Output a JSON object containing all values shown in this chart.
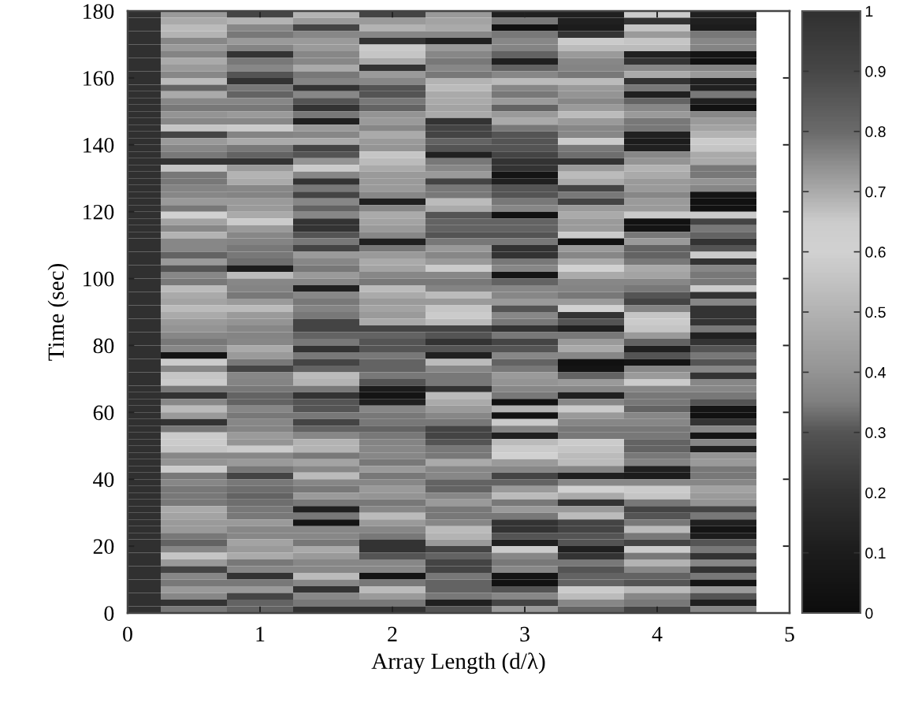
{
  "chart_data": {
    "type": "heatmap",
    "xlabel": "Array Length (d/λ)",
    "ylabel": "Time (sec)",
    "x": [
      0,
      0.5,
      1,
      1.5,
      2,
      2.5,
      3,
      3.5,
      4,
      4.5
    ],
    "xlim": [
      0,
      5
    ],
    "xticks": [
      0,
      1,
      2,
      3,
      4,
      5
    ],
    "ylim": [
      0,
      180
    ],
    "yticks": [
      0,
      20,
      40,
      60,
      80,
      100,
      120,
      140,
      160,
      180
    ],
    "clim": [
      0,
      1
    ],
    "cticks": [
      0,
      0.1,
      0.2,
      0.3,
      0.4,
      0.5,
      0.6,
      0.7,
      0.8,
      0.9,
      1
    ],
    "cells": [
      [
        1,
        0.42,
        0.25,
        0.5,
        0.25,
        0.42,
        0.12,
        0.12,
        0.58,
        0.12
      ],
      [
        1,
        0.47,
        0.5,
        0.42,
        0.42,
        0.45,
        0.34,
        0.12,
        0.2,
        0.12
      ],
      [
        1,
        0.53,
        0.37,
        0.25,
        0.5,
        0.47,
        0.03,
        0.1,
        0.56,
        0.1
      ],
      [
        1,
        0.5,
        0.34,
        0.37,
        0.37,
        0.37,
        0.34,
        0.2,
        0.42,
        0.34
      ],
      [
        1,
        0.37,
        0.42,
        0.42,
        0.2,
        0.12,
        0.37,
        0.58,
        0.56,
        0.37
      ],
      [
        1,
        0.42,
        0.36,
        0.42,
        0.58,
        0.42,
        0.36,
        0.53,
        0.53,
        0.36
      ],
      [
        1,
        0.36,
        0.2,
        0.37,
        0.56,
        0.37,
        0.32,
        0.42,
        0.12,
        0.05
      ],
      [
        1,
        0.47,
        0.34,
        0.37,
        0.47,
        0.34,
        0.12,
        0.37,
        0.2,
        0.03
      ],
      [
        1,
        0.42,
        0.37,
        0.47,
        0.2,
        0.37,
        0.32,
        0.36,
        0.37,
        0.36
      ],
      [
        1,
        0.37,
        0.3,
        0.34,
        0.42,
        0.34,
        0.37,
        0.34,
        0.47,
        0.42
      ],
      [
        1,
        0.53,
        0.2,
        0.36,
        0.37,
        0.5,
        0.53,
        0.53,
        0.2,
        0.12
      ],
      [
        1,
        0.32,
        0.34,
        0.2,
        0.3,
        0.53,
        0.37,
        0.42,
        0.34,
        0.12
      ],
      [
        1,
        0.47,
        0.32,
        0.37,
        0.3,
        0.47,
        0.34,
        0.4,
        0.12,
        0.34
      ],
      [
        1,
        0.37,
        0.37,
        0.3,
        0.34,
        0.47,
        0.42,
        0.37,
        0.32,
        0.12
      ],
      [
        1,
        0.34,
        0.34,
        0.2,
        0.32,
        0.45,
        0.32,
        0.42,
        0.37,
        0.03
      ],
      [
        1,
        0.4,
        0.42,
        0.34,
        0.4,
        0.47,
        0.42,
        0.53,
        0.42,
        0.37
      ],
      [
        1,
        0.37,
        0.37,
        0.12,
        0.42,
        0.2,
        0.47,
        0.42,
        0.34,
        0.42
      ],
      [
        1,
        0.56,
        0.58,
        0.42,
        0.37,
        0.25,
        0.34,
        0.37,
        0.34,
        0.45
      ],
      [
        1,
        0.25,
        0.36,
        0.37,
        0.47,
        0.25,
        0.3,
        0.37,
        0.12,
        0.5
      ],
      [
        1,
        0.42,
        0.47,
        0.47,
        0.42,
        0.32,
        0.3,
        0.58,
        0.1,
        0.58
      ],
      [
        1,
        0.37,
        0.34,
        0.25,
        0.4,
        0.3,
        0.3,
        0.34,
        0.12,
        0.56
      ],
      [
        1,
        0.34,
        0.32,
        0.3,
        0.56,
        0.12,
        0.25,
        0.33,
        0.37,
        0.47
      ],
      [
        1,
        0.2,
        0.2,
        0.4,
        0.53,
        0.34,
        0.2,
        0.2,
        0.4,
        0.47
      ],
      [
        1,
        0.56,
        0.42,
        0.58,
        0.47,
        0.37,
        0.2,
        0.42,
        0.5,
        0.34
      ],
      [
        1,
        0.34,
        0.5,
        0.37,
        0.42,
        0.42,
        0.05,
        0.53,
        0.47,
        0.34
      ],
      [
        1,
        0.34,
        0.47,
        0.2,
        0.42,
        0.25,
        0.12,
        0.47,
        0.42,
        0.4
      ],
      [
        1,
        0.36,
        0.37,
        0.34,
        0.42,
        0.34,
        0.3,
        0.25,
        0.42,
        0.37
      ],
      [
        1,
        0.37,
        0.36,
        0.25,
        0.37,
        0.34,
        0.3,
        0.34,
        0.37,
        0.05
      ],
      [
        1,
        0.42,
        0.42,
        0.37,
        0.12,
        0.53,
        0.34,
        0.25,
        0.42,
        0.03
      ],
      [
        1,
        0.34,
        0.42,
        0.32,
        0.37,
        0.47,
        0.37,
        0.42,
        0.42,
        0.03
      ],
      [
        1,
        0.6,
        0.47,
        0.37,
        0.47,
        0.3,
        0.03,
        0.47,
        0.58,
        0.58
      ],
      [
        1,
        0.45,
        0.58,
        0.2,
        0.45,
        0.32,
        0.32,
        0.42,
        0.03,
        0.25
      ],
      [
        1,
        0.37,
        0.42,
        0.2,
        0.42,
        0.32,
        0.32,
        0.42,
        0.05,
        0.34
      ],
      [
        1,
        0.5,
        0.37,
        0.3,
        0.37,
        0.3,
        0.3,
        0.58,
        0.34,
        0.32
      ],
      [
        1,
        0.37,
        0.36,
        0.34,
        0.12,
        0.34,
        0.34,
        0.03,
        0.42,
        0.2
      ],
      [
        1,
        0.37,
        0.34,
        0.25,
        0.34,
        0.42,
        0.2,
        0.42,
        0.32,
        0.3
      ],
      [
        1,
        0.32,
        0.34,
        0.42,
        0.42,
        0.37,
        0.2,
        0.37,
        0.32,
        0.58
      ],
      [
        1,
        0.42,
        0.33,
        0.37,
        0.47,
        0.42,
        0.34,
        0.47,
        0.34,
        0.2
      ],
      [
        1,
        0.3,
        0.1,
        0.34,
        0.45,
        0.58,
        0.37,
        0.6,
        0.47,
        0.37
      ],
      [
        1,
        0.37,
        0.53,
        0.42,
        0.37,
        0.37,
        0.05,
        0.47,
        0.45,
        0.34
      ],
      [
        1,
        0.34,
        0.37,
        0.37,
        0.34,
        0.34,
        0.32,
        0.37,
        0.37,
        0.34
      ],
      [
        1,
        0.53,
        0.36,
        0.12,
        0.53,
        0.36,
        0.37,
        0.36,
        0.34,
        0.58
      ],
      [
        1,
        0.47,
        0.34,
        0.37,
        0.47,
        0.53,
        0.37,
        0.34,
        0.3,
        0.2
      ],
      [
        1,
        0.45,
        0.42,
        0.34,
        0.42,
        0.42,
        0.42,
        0.42,
        0.25,
        0.37
      ],
      [
        1,
        0.53,
        0.53,
        0.36,
        0.45,
        0.56,
        0.3,
        0.6,
        0.36,
        0.2
      ],
      [
        1,
        0.47,
        0.42,
        0.34,
        0.42,
        0.58,
        0.37,
        0.2,
        0.56,
        0.2
      ],
      [
        1,
        0.42,
        0.4,
        0.25,
        0.47,
        0.53,
        0.34,
        0.3,
        0.58,
        0.2
      ],
      [
        1,
        0.4,
        0.37,
        0.25,
        0.25,
        0.25,
        0.2,
        0.12,
        0.56,
        0.34
      ],
      [
        1,
        0.37,
        0.36,
        0.32,
        0.32,
        0.3,
        0.34,
        0.34,
        0.42,
        0.12
      ],
      [
        1,
        0.34,
        0.37,
        0.34,
        0.3,
        0.2,
        0.25,
        0.42,
        0.32,
        0.2
      ],
      [
        1,
        0.37,
        0.47,
        0.2,
        0.3,
        0.3,
        0.3,
        0.47,
        0.12,
        0.3
      ],
      [
        1,
        0.05,
        0.42,
        0.34,
        0.34,
        0.12,
        0.37,
        0.37,
        0.3,
        0.34
      ],
      [
        1,
        0.58,
        0.34,
        0.25,
        0.32,
        0.53,
        0.32,
        0.03,
        0.05,
        0.3
      ],
      [
        1,
        0.37,
        0.25,
        0.32,
        0.32,
        0.37,
        0.34,
        0.05,
        0.37,
        0.37
      ],
      [
        1,
        0.56,
        0.37,
        0.53,
        0.34,
        0.34,
        0.42,
        0.32,
        0.42,
        0.2
      ],
      [
        1,
        0.58,
        0.36,
        0.5,
        0.3,
        0.34,
        0.4,
        0.42,
        0.58,
        0.37
      ],
      [
        1,
        0.34,
        0.34,
        0.34,
        0.1,
        0.2,
        0.37,
        0.37,
        0.37,
        0.37
      ],
      [
        1,
        0.2,
        0.32,
        0.2,
        0.05,
        0.53,
        0.34,
        0.12,
        0.34,
        0.34
      ],
      [
        1,
        0.37,
        0.32,
        0.3,
        0.12,
        0.47,
        0.03,
        0.37,
        0.34,
        0.3
      ],
      [
        1,
        0.53,
        0.37,
        0.3,
        0.37,
        0.42,
        0.5,
        0.58,
        0.32,
        0.05
      ],
      [
        1,
        0.42,
        0.34,
        0.34,
        0.34,
        0.37,
        0.03,
        0.42,
        0.37,
        0.03
      ],
      [
        1,
        0.2,
        0.37,
        0.25,
        0.34,
        0.34,
        0.58,
        0.37,
        0.37,
        0.2
      ],
      [
        1,
        0.34,
        0.36,
        0.32,
        0.32,
        0.25,
        0.36,
        0.34,
        0.34,
        0.37
      ],
      [
        1,
        0.58,
        0.42,
        0.37,
        0.34,
        0.25,
        0.12,
        0.34,
        0.34,
        0.05
      ],
      [
        1,
        0.58,
        0.4,
        0.5,
        0.36,
        0.3,
        0.53,
        0.58,
        0.32,
        0.37
      ],
      [
        1,
        0.56,
        0.58,
        0.5,
        0.37,
        0.34,
        0.58,
        0.56,
        0.32,
        0.12
      ],
      [
        1,
        0.37,
        0.37,
        0.34,
        0.37,
        0.34,
        0.6,
        0.53,
        0.34,
        0.4
      ],
      [
        1,
        0.4,
        0.42,
        0.45,
        0.34,
        0.47,
        0.42,
        0.53,
        0.36,
        0.42
      ],
      [
        1,
        0.58,
        0.34,
        0.37,
        0.42,
        0.37,
        0.37,
        0.36,
        0.12,
        0.34
      ],
      [
        1,
        0.34,
        0.25,
        0.53,
        0.34,
        0.37,
        0.25,
        0.12,
        0.1,
        0.34
      ],
      [
        1,
        0.37,
        0.34,
        0.37,
        0.37,
        0.32,
        0.32,
        0.37,
        0.37,
        0.37
      ],
      [
        1,
        0.34,
        0.33,
        0.34,
        0.42,
        0.32,
        0.42,
        0.6,
        0.58,
        0.45
      ],
      [
        1,
        0.34,
        0.32,
        0.42,
        0.4,
        0.37,
        0.53,
        0.47,
        0.56,
        0.42
      ],
      [
        1,
        0.34,
        0.33,
        0.34,
        0.34,
        0.42,
        0.34,
        0.2,
        0.34,
        0.4
      ],
      [
        1,
        0.47,
        0.34,
        0.12,
        0.37,
        0.34,
        0.42,
        0.42,
        0.25,
        0.25
      ],
      [
        1,
        0.45,
        0.34,
        0.34,
        0.53,
        0.34,
        0.34,
        0.53,
        0.3,
        0.34
      ],
      [
        1,
        0.42,
        0.42,
        0.05,
        0.42,
        0.37,
        0.2,
        0.25,
        0.34,
        0.12
      ],
      [
        1,
        0.42,
        0.37,
        0.37,
        0.37,
        0.53,
        0.2,
        0.25,
        0.53,
        0.05
      ],
      [
        1,
        0.34,
        0.37,
        0.37,
        0.34,
        0.5,
        0.3,
        0.3,
        0.34,
        0.1
      ],
      [
        1,
        0.32,
        0.45,
        0.34,
        0.2,
        0.42,
        0.12,
        0.3,
        0.25,
        0.3
      ],
      [
        1,
        0.37,
        0.42,
        0.47,
        0.2,
        0.25,
        0.58,
        0.12,
        0.58,
        0.34
      ],
      [
        1,
        0.56,
        0.47,
        0.42,
        0.3,
        0.32,
        0.37,
        0.2,
        0.34,
        0.2
      ],
      [
        1,
        0.42,
        0.34,
        0.37,
        0.37,
        0.25,
        0.34,
        0.34,
        0.5,
        0.37
      ],
      [
        1,
        0.25,
        0.37,
        0.37,
        0.37,
        0.25,
        0.37,
        0.3,
        0.37,
        0.2
      ],
      [
        1,
        0.37,
        0.2,
        0.53,
        0.05,
        0.34,
        0.05,
        0.32,
        0.32,
        0.34
      ],
      [
        1,
        0.34,
        0.34,
        0.37,
        0.34,
        0.32,
        0.03,
        0.32,
        0.3,
        0.05
      ],
      [
        1,
        0.42,
        0.42,
        0.2,
        0.53,
        0.32,
        0.3,
        0.58,
        0.53,
        0.42
      ],
      [
        1,
        0.37,
        0.25,
        0.37,
        0.42,
        0.34,
        0.37,
        0.53,
        0.37,
        0.3
      ],
      [
        1,
        0.2,
        0.32,
        0.34,
        0.34,
        0.12,
        0.25,
        0.37,
        0.34,
        0.12
      ],
      [
        1,
        0.34,
        0.32,
        0.2,
        0.2,
        0.3,
        0.42,
        0.32,
        0.25,
        0.37
      ]
    ]
  }
}
